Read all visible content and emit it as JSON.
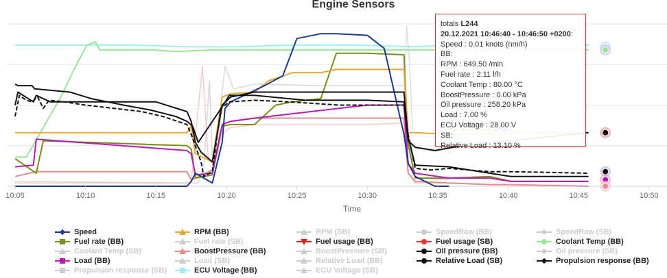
{
  "chart_data": {
    "type": "line",
    "title": "Engine Sensors",
    "xlabel": "Time",
    "ylabel": "",
    "x_ticks": [
      "10:05",
      "10:10",
      "10:15",
      "10:20",
      "10:25",
      "10:30",
      "10:35",
      "10:40",
      "10:45",
      "10:50"
    ],
    "grid": "horizontal",
    "legend_position": "bottom",
    "series": [
      {
        "name": "Speed",
        "color": "#1a3a8f",
        "visible": true,
        "marker": "diamond",
        "x": [
          0,
          3.2,
          6.4,
          12.2,
          12.5,
          12.8,
          14.0,
          14.7,
          14.9,
          15.3,
          17.7,
          19.0,
          20.0,
          21.7,
          22.8,
          25.0,
          26.2,
          27.6,
          27.9,
          28.4,
          29.8,
          30.8
        ],
        "y": [
          0,
          0,
          0,
          0,
          0.03,
          0.08,
          0.02,
          0.27,
          0.48,
          0.52,
          0.62,
          0.68,
          0.91,
          0.94,
          0.94,
          0.93,
          0.85,
          0.32,
          0.14,
          0.06,
          0,
          0
        ]
      },
      {
        "name": "Fuel rate (BB)",
        "color": "#7d8c1a",
        "visible": true,
        "marker": "square",
        "x": [
          0,
          1.5,
          2.0,
          12.2,
          12.5,
          12.8,
          14.0,
          14.7,
          15.3,
          17.0,
          18.5,
          19.7,
          21.7,
          22.8,
          25.0,
          27.6,
          27.9,
          28.4,
          30.8,
          33.7,
          35.2,
          40.7
        ],
        "y": [
          0.17,
          0.08,
          0.28,
          0.25,
          0.23,
          0.05,
          0.07,
          0.37,
          0.38,
          0.38,
          0.5,
          0.52,
          0.54,
          0.82,
          0.82,
          0.81,
          0.26,
          0.05,
          0.05,
          0.06,
          0.03,
          0.03
        ]
      },
      {
        "name": "RPM (BB)",
        "color": "#e8a838",
        "visible": true,
        "marker": "triangle",
        "x": [
          0,
          1.5,
          12.2,
          12.5,
          12.8,
          14.0,
          14.7,
          15.3,
          17.0,
          18.0,
          19.7,
          21.7,
          22.8,
          25.0,
          27.6,
          27.9,
          28.4,
          30.8,
          33.7,
          35.2,
          40.7
        ],
        "y": [
          0.33,
          0.33,
          0.33,
          0.37,
          0.2,
          0.15,
          0.55,
          0.57,
          0.58,
          0.65,
          0.7,
          0.7,
          0.72,
          0.72,
          0.72,
          0.33,
          0.33,
          0.32,
          0.32,
          0.33,
          0.33
        ]
      },
      {
        "name": "BoostPressure (BB)",
        "color": "#e58b8b",
        "visible": true,
        "marker": "triangle",
        "x": [
          0,
          1.5,
          12.2,
          12.5,
          12.8,
          14.0,
          14.7,
          15.3,
          17.0,
          25.0,
          27.6,
          27.9,
          28.4,
          30.8,
          33.7,
          35.2,
          40.7
        ],
        "y": [
          0.06,
          0.09,
          0.09,
          0.04,
          0.05,
          0.1,
          0.38,
          0.4,
          0.42,
          0.42,
          0.42,
          0.08,
          0.03,
          0.02,
          0.01,
          0.01,
          0
        ]
      },
      {
        "name": "Load (BB)",
        "color": "#b51cb5",
        "visible": true,
        "marker": "square",
        "x": [
          0,
          1.3,
          1.5,
          12.2,
          12.5,
          12.8,
          14.0,
          14.7,
          15.3,
          17.0,
          25.0,
          27.6,
          27.9,
          28.4,
          30.8,
          33.7,
          35.2,
          40.7
        ],
        "y": [
          0.12,
          0.13,
          0.29,
          0.22,
          0.2,
          0.07,
          0.08,
          0.38,
          0.4,
          0.42,
          0.5,
          0.5,
          0.14,
          0.08,
          0.05,
          0.05,
          0.03,
          0.03
        ]
      },
      {
        "name": "Coolant Temp (BB)",
        "color": "#99e699",
        "visible": true,
        "marker": "circle",
        "x": [
          0,
          0.4,
          0.8,
          1.2,
          1.6,
          3.3,
          4.3,
          5.1,
          5.7,
          6.0,
          9.8,
          11.4,
          14.1,
          15.8,
          17.2,
          18.3,
          20.7,
          24.5,
          27.6,
          28.3,
          31.8,
          40.7
        ],
        "y": [
          0.18,
          0.18,
          0.18,
          0.24,
          0.3,
          0.56,
          0.74,
          0.87,
          0.89,
          0.84,
          0.84,
          0.83,
          0.84,
          0.84,
          0.84,
          0.84,
          0.84,
          0.84,
          0.84,
          0.84,
          0.84,
          0.84
        ]
      },
      {
        "name": "Oil pressure (BB)",
        "color": "#111111",
        "visible": true,
        "marker": "circle",
        "x": [
          0,
          0.2,
          1.3,
          1.5,
          2.5,
          10.0,
          12.2,
          12.5,
          12.8,
          13.2,
          14.0,
          14.7,
          15.3,
          17.0,
          25.0,
          27.6,
          27.9,
          28.4,
          30.8,
          33.7,
          35.2,
          40.7
        ],
        "y": [
          0.5,
          0.58,
          0.52,
          0.56,
          0.52,
          0.52,
          0.46,
          0.4,
          0.27,
          0.21,
          0.15,
          0.5,
          0.55,
          0.58,
          0.58,
          0.58,
          0.3,
          0.13,
          0.12,
          0.08,
          0.06,
          0.06
        ]
      },
      {
        "name": "Relative Load (SB)",
        "color": "#111111",
        "visible": true,
        "marker": "circle",
        "x": [
          0,
          0.2,
          1.2,
          1.4,
          3.9,
          5.4,
          7.7,
          9.6,
          10.5,
          11.4,
          12.2,
          12.6,
          13.0,
          14.7,
          15.2,
          17.0,
          20.6,
          25.0,
          27.6,
          27.9,
          28.4,
          29.8,
          31.7,
          40.7
        ],
        "y": [
          0.63,
          0.62,
          0.62,
          0.6,
          0.58,
          0.54,
          0.5,
          0.47,
          0.45,
          0.43,
          0.4,
          0.37,
          0.27,
          0.49,
          0.56,
          0.56,
          0.53,
          0.53,
          0.52,
          0.28,
          0.24,
          0.22,
          0.25,
          0.33
        ]
      },
      {
        "name": "Propulsion response (BB)",
        "color": "#111111",
        "visible": true,
        "marker": "diamond",
        "dashed": true,
        "x": [
          0,
          0.3,
          0.8,
          1.2,
          1.6,
          2.0,
          2.4,
          3.5,
          5.0,
          7.0,
          9.0,
          10.5,
          12.2,
          12.5,
          13.2,
          13.4,
          14.0,
          14.6,
          15.2,
          17.0,
          19.5,
          23.0,
          27.6,
          27.9,
          28.4,
          29.5,
          30.8,
          33.7,
          35.2,
          40.7
        ],
        "y": [
          0.43,
          0.56,
          0.53,
          0.52,
          0.55,
          0.48,
          0.53,
          0.52,
          0.5,
          0.48,
          0.46,
          0.43,
          0.38,
          0.32,
          0.15,
          0.06,
          0.09,
          0.48,
          0.52,
          0.53,
          0.52,
          0.5,
          0.5,
          0.32,
          0.11,
          0.1,
          0.11,
          0.09,
          0.09,
          0.08
        ]
      },
      {
        "name": "ECU Voltage (BB)",
        "color": "#9ef0f0",
        "visible": true,
        "marker": "square",
        "x": [
          0,
          5.0,
          8.0,
          12.0,
          16.0,
          20.0,
          24.0,
          28.0,
          32.0,
          36.0,
          40.7
        ],
        "y": [
          0.87,
          0.87,
          0.87,
          0.86,
          0.86,
          0.87,
          0.87,
          0.86,
          0.87,
          0.87,
          0.87
        ]
      },
      {
        "name": "Oil pressure (SB)",
        "color": "#c8c8c8",
        "visible": false,
        "marker": "circle",
        "x": [
          0,
          13.0,
          13.4,
          13.8,
          14.0,
          14.4,
          14.6,
          14.9,
          15.5,
          17.0,
          21.5,
          25.0,
          26.5,
          27.6,
          27.9,
          28.4,
          30.8
        ],
        "y": [
          0.03,
          0.02,
          0.12,
          0.65,
          0.18,
          0.2,
          0.5,
          0.74,
          0.6,
          0.63,
          0.62,
          0.62,
          0.62,
          0.62,
          0.32,
          0.05,
          0.04
        ]
      },
      {
        "name": "BoostPressure (SB)",
        "color": "#f5b5b5",
        "visible": false,
        "marker": "triangle",
        "x": [
          0,
          12.5,
          12.9,
          13.3,
          13.7,
          14.1,
          14.7,
          15.2,
          17.0,
          25.0,
          27.6,
          27.9,
          28.4,
          30.8
        ],
        "y": [
          0.02,
          0.02,
          0.4,
          0.74,
          0.18,
          0.12,
          0.32,
          0.36,
          0.38,
          0.38,
          0.39,
          0.08,
          0.02,
          0.02
        ]
      },
      {
        "name": "RPM (SB)",
        "color": "#d0d0d0",
        "visible": false,
        "marker": "triangle",
        "x": [
          27.6,
          27.8,
          28.0,
          28.2
        ],
        "y": [
          0.55,
          0.99,
          0.75,
          0.35
        ]
      }
    ],
    "legend": [
      [
        "Speed",
        "#1a3a8f",
        "diamond",
        false
      ],
      [
        "RPM (BB)",
        "#e8a838",
        "triangle",
        false
      ],
      [
        "RPM (SB)",
        "#cccccc",
        "triangle",
        true
      ],
      [
        "SpeedRaw (BB)",
        "#cccccc",
        "circle",
        true
      ],
      [
        "SpeedRaw (SB)",
        "#cccccc",
        "diamond",
        true
      ],
      [
        "Fuel rate (BB)",
        "#7d8c1a",
        "square",
        false
      ],
      [
        "Fuel rate (SB)",
        "#cccccc",
        "triangle",
        true
      ],
      [
        "Fuel usage (BB)",
        "#e02020",
        "triangle-down",
        false
      ],
      [
        "Fuel usage (SB)",
        "#f03030",
        "circle",
        false
      ],
      [
        "Coolant Temp (BB)",
        "#99e699",
        "circle",
        false
      ],
      [
        "Coolant Temp (SB)",
        "#cccccc",
        "triangle",
        true
      ],
      [
        "BoostPressure (BB)",
        "#e58b8b",
        "triangle",
        false
      ],
      [
        "BoostPressure (SB)",
        "#cccccc",
        "triangle",
        true
      ],
      [
        "Oil pressure (BB)",
        "#111111",
        "circle",
        false
      ],
      [
        "Oil pressure (SB)",
        "#cccccc",
        "diamond",
        true
      ],
      [
        "Load (BB)",
        "#b51cb5",
        "square",
        false
      ],
      [
        "Load (SB)",
        "#cccccc",
        "triangle",
        true
      ],
      [
        "Relative Load (BB)",
        "#cccccc",
        "triangle",
        true
      ],
      [
        "Relative Load (SB)",
        "#111111",
        "circle",
        false
      ],
      [
        "Propulsion response (BB)",
        "#111111",
        "diamond",
        false
      ],
      [
        "Propulsion response (SB)",
        "#cccccc",
        "square",
        true
      ],
      [
        "ECU Voltage (BB)",
        "#9ef0f0",
        "square",
        false
      ],
      [
        "ECU Voltage (SB)",
        "#cccccc",
        "triangle",
        true
      ]
    ]
  },
  "tooltip": {
    "lines": [
      [
        "totals ",
        "L244",
        ""
      ],
      [
        "",
        "20.12.2021 10:46:40 - 10:46:50 +0200",
        ":"
      ],
      [
        "Speed : 0.01 knots (nm/h)",
        "",
        ""
      ],
      [
        "BB:",
        "",
        ""
      ],
      [
        "RPM : 649.50 /min",
        "",
        ""
      ],
      [
        "Fuel rate : 2.11 l/h",
        "",
        ""
      ],
      [
        "Coolant Temp : 80.00 °C",
        "",
        ""
      ],
      [
        "BoostPressure : 0.00 kPa",
        "",
        ""
      ],
      [
        "Oil pressure : 258.20 kPa",
        "",
        ""
      ],
      [
        "Load : 7.00 %",
        "",
        ""
      ],
      [
        "ECU Voltage : 28.00 V",
        "",
        ""
      ],
      [
        "SB:",
        "",
        ""
      ],
      [
        "Relative Load : 13.10 %",
        "",
        ""
      ]
    ]
  }
}
